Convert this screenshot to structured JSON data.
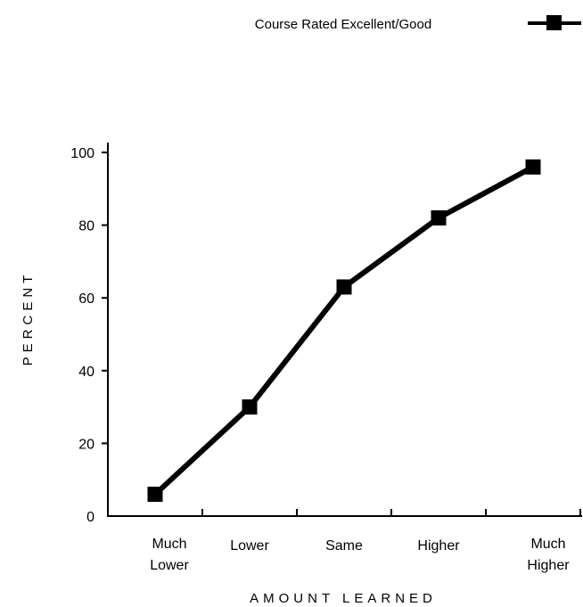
{
  "chart_data": {
    "type": "line",
    "title": "",
    "xlabel": "AMOUNT LEARNED",
    "ylabel": "PERCENT",
    "ylim": [
      0,
      100
    ],
    "y_ticks": [
      "0",
      "20",
      "40",
      "60",
      "80",
      "100"
    ],
    "categories": [
      [
        "Much",
        "Lower"
      ],
      [
        "Lower"
      ],
      [
        "Same"
      ],
      [
        "Higher"
      ],
      [
        "Much",
        "Higher"
      ]
    ],
    "series": [
      {
        "name": "Course Rated Excellent/Good",
        "values": [
          6,
          30,
          63,
          82,
          96
        ]
      }
    ],
    "legend": {
      "position": "top-right"
    },
    "grid": false,
    "colors": {
      "line": "#000000",
      "marker": "#000000"
    }
  }
}
